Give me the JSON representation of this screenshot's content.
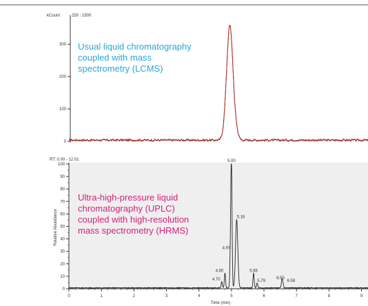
{
  "chart_data": [
    {
      "type": "line",
      "ylabel": "kCount",
      "range_label": "250 : 1500",
      "y_ticks": [
        0,
        100,
        200,
        300
      ],
      "ylim": [
        0,
        390
      ],
      "annotation": "Usual liquid chromatography coupled with mass spectrometry (LCMS)",
      "annotation_lines": [
        "Usual liquid chromatography",
        "coupled with mass",
        "spectrometry (LCMS)"
      ],
      "annotation_color": "#2aa6d6",
      "series": [
        {
          "color": "#b5322c",
          "peak": {
            "center": 4.95,
            "height": 355,
            "width": 0.1
          }
        }
      ],
      "x_range": [
        0,
        9.2
      ],
      "grid": false
    },
    {
      "type": "line",
      "title": "RT: 0.00 - 12.01",
      "xlabel": "Time (min)",
      "ylabel": "Relative Abundance",
      "ylim": [
        0,
        100
      ],
      "y_ticks": [
        0,
        10,
        20,
        30,
        40,
        50,
        60,
        70,
        80,
        90,
        100
      ],
      "x_ticks": [
        0,
        1,
        2,
        3,
        4,
        5,
        6,
        7,
        8,
        9
      ],
      "xlim": [
        0,
        9.2
      ],
      "annotation": "Ultra-high-pressure liquid chromatography (UPLC) coupled with high-resolution mass spectrometry (HRMS)",
      "annotation_lines": [
        "Ultra-high-pressure liquid",
        "chromatography (UPLC)",
        "coupled with high-resolution",
        "mass spectrometry (HRMS)"
      ],
      "annotation_color": "#d6207a",
      "series": [
        {
          "color": "#222222",
          "peaks": [
            {
              "rt": 4.7,
              "label": "4.70",
              "height": 5
            },
            {
              "rt": 4.8,
              "label": "4.80",
              "height": 12
            },
            {
              "rt": 4.97,
              "label": "4.97",
              "height": 30
            },
            {
              "rt": 5.0,
              "label": "5.00",
              "height": 100
            },
            {
              "rt": 5.16,
              "label": "5.16",
              "height": 55
            },
            {
              "rt": 5.68,
              "label": "5.68",
              "height": 12
            },
            {
              "rt": 5.79,
              "label": "5.79",
              "height": 4
            },
            {
              "rt": 6.55,
              "label": "6.55",
              "height": 6
            },
            {
              "rt": 6.58,
              "label": "6.58",
              "height": 4
            }
          ]
        }
      ],
      "grid": false
    }
  ]
}
